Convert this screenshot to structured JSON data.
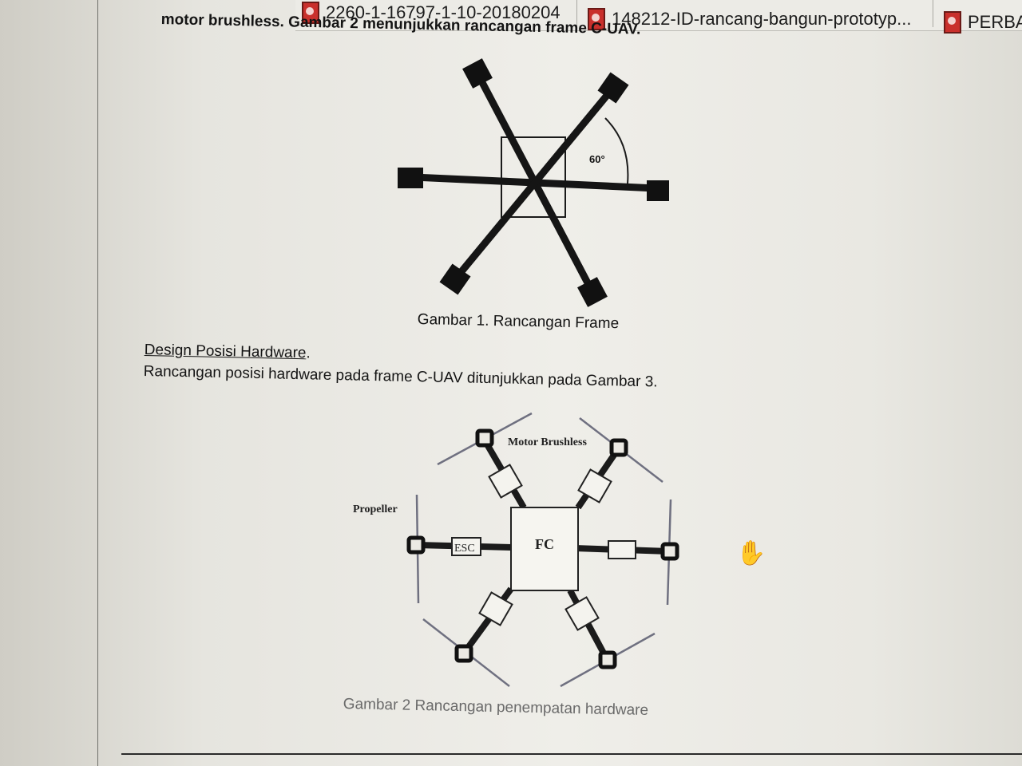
{
  "tabs": [
    {
      "label": "2260-1-16797-1-10-20180204",
      "icon": "pdf-icon"
    },
    {
      "label": "148212-ID-rancang-bangun-prototyp...",
      "icon": "pdf-icon"
    },
    {
      "label": "PERBAI",
      "icon": "pdf-icon"
    }
  ],
  "document": {
    "intro_line": "motor brushless. Gambar 2 menunjukkan rancangan frame C-UAV.",
    "figure1": {
      "angle_label": "60°",
      "caption": "Gambar  1. Rancangan Frame"
    },
    "section_heading": "Design Posisi Hardware",
    "section_heading_suffix": ".",
    "section_body": "Rancangan posisi hardware pada frame C-UAV ditunjukkan pada Gambar 3.",
    "figure2": {
      "label_motor": "Motor Brushless",
      "label_propeller": "Propeller",
      "label_esc": "ESC",
      "label_fc": "FC",
      "caption": "Gambar  2 Rancangan penempatan hardware"
    }
  },
  "cursor": {
    "icon": "hand-cursor-icon",
    "glyph": "✋"
  }
}
